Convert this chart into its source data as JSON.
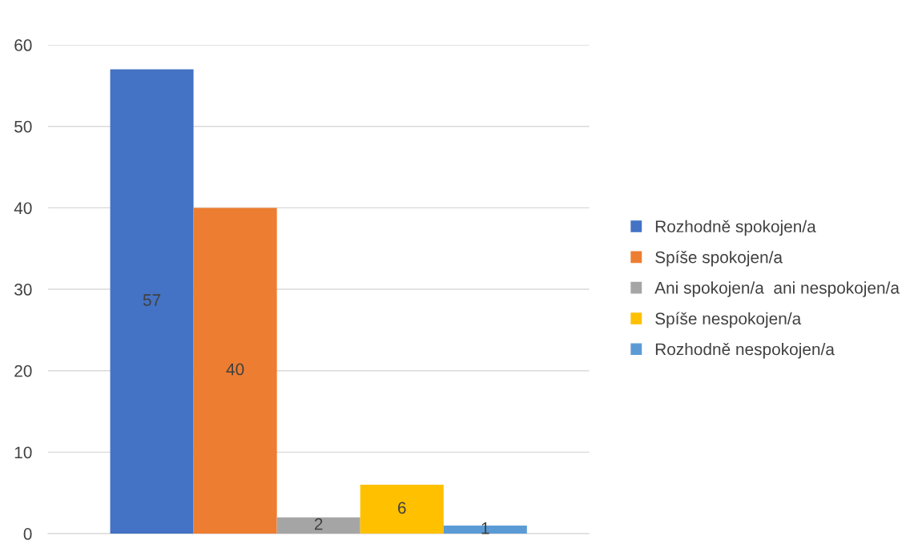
{
  "chart_data": {
    "type": "bar",
    "categories": [
      null
    ],
    "series": [
      {
        "name": "Rozhodně spokojen/a",
        "color": "#4472c4",
        "values": [
          57
        ]
      },
      {
        "name": "Spíše spokojen/a",
        "color": "#ed7d31",
        "values": [
          40
        ]
      },
      {
        "name": "Ani spokojen/a  ani nespokojen/a",
        "color": "#a5a5a5",
        "values": [
          2
        ]
      },
      {
        "name": "Spíše nespokojen/a",
        "color": "#ffc000",
        "values": [
          6
        ]
      },
      {
        "name": "Rozhodně nespokojen/a",
        "color": "#5b9bd5",
        "values": [
          1
        ]
      }
    ],
    "ylim": [
      0,
      60
    ],
    "yticks": [
      0,
      10,
      20,
      30,
      40,
      50,
      60
    ],
    "grid": "y",
    "legend": "right",
    "data_labels": true
  }
}
